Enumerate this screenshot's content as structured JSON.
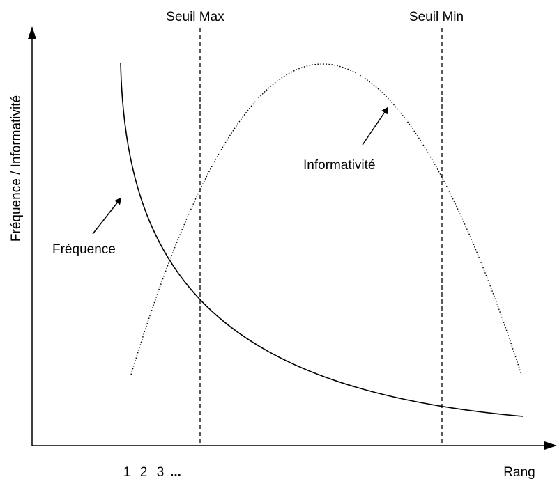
{
  "thresholds": {
    "max": "Seuil Max",
    "min": "Seuil Min"
  },
  "axes": {
    "y_label": "Fréquence / Informativité",
    "x_label": "Rang",
    "x_ranks": [
      "1",
      "2",
      "3",
      "..."
    ]
  },
  "curves": {
    "frequency": "Fréquence",
    "informativity": "Informativité"
  }
}
